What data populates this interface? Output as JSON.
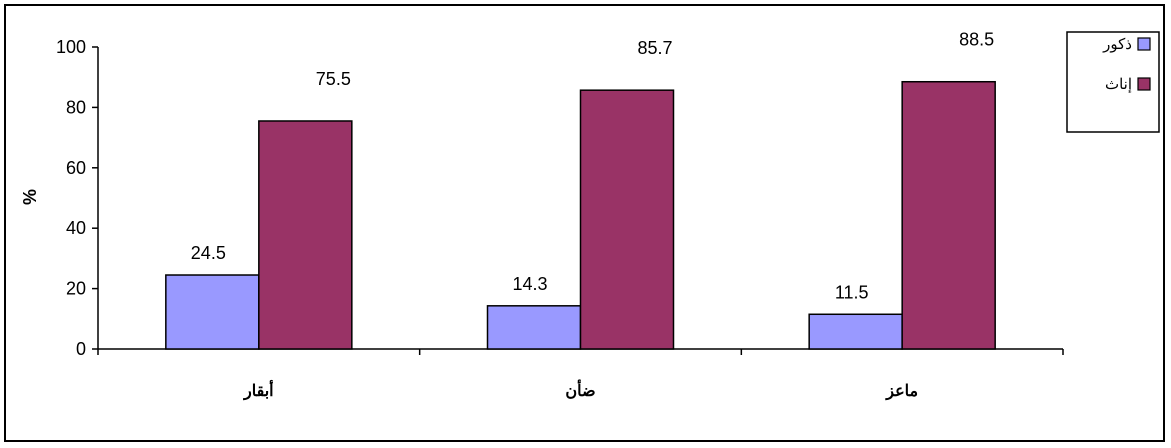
{
  "chart_data": {
    "type": "bar",
    "categories": [
      "أبقار",
      "ضأن",
      "ماعز"
    ],
    "series": [
      {
        "name": "ذكور",
        "values": [
          24.5,
          14.3,
          11.5
        ],
        "color": "#9999FF"
      },
      {
        "name": "إناث",
        "values": [
          75.5,
          85.7,
          88.5
        ],
        "color": "#993366"
      }
    ],
    "ylabel": "%",
    "xlabel": "",
    "title": "",
    "ylim": [
      0,
      100
    ],
    "yticks": [
      0,
      20,
      40,
      60,
      80,
      100
    ],
    "data_labels": [
      "24.5",
      "14.3",
      "11.5",
      "75.5",
      "85.7",
      "88.5"
    ],
    "y_tick_labels": [
      "0",
      "20",
      "40",
      "60",
      "80",
      "100"
    ],
    "legend_position": "top-right",
    "grid": false
  }
}
